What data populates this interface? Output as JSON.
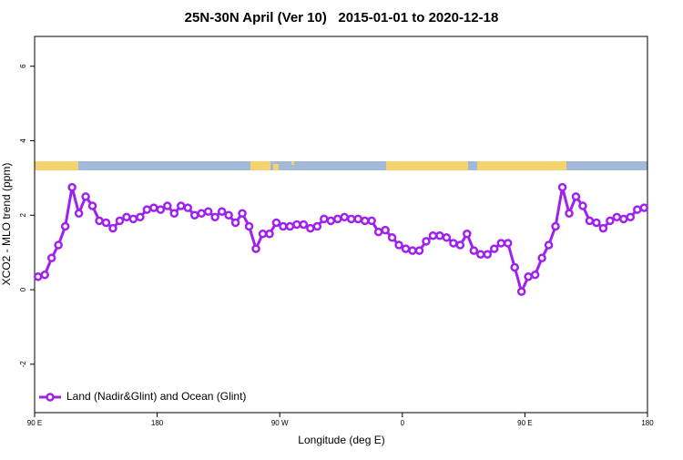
{
  "chart_data": {
    "type": "line",
    "title": "25N-30N April (Ver 10)   2015-01-01 to 2020-12-18",
    "x_label": "Longitude (deg E)",
    "y_label": "XCO2 - MLO trend (ppm)",
    "x": [
      92.5,
      97.5,
      102.5,
      107.5,
      112.5,
      117.5,
      122.5,
      127.5,
      132.5,
      137.5,
      142.5,
      147.5,
      152.5,
      157.5,
      162.5,
      167.5,
      172.5,
      177.5,
      182.5,
      187.5,
      192.5,
      197.5,
      202.5,
      207.5,
      212.5,
      217.5,
      222.5,
      227.5,
      232.5,
      237.5,
      242.5,
      247.5,
      252.5,
      257.5,
      262.5,
      267.5,
      272.5,
      277.5,
      282.5,
      287.5,
      292.5,
      297.5,
      302.5,
      307.5,
      312.5,
      317.5,
      322.5,
      327.5,
      332.5,
      337.5,
      342.5,
      347.5,
      352.5,
      357.5,
      362.5,
      367.5,
      372.5,
      377.5,
      382.5,
      387.5,
      392.5,
      397.5,
      402.5,
      407.5,
      412.5,
      417.5,
      422.5,
      427.5,
      432.5,
      437.5,
      442.5,
      447.5,
      452.5,
      457.5,
      462.5,
      467.5,
      472.5,
      477.5,
      482.5,
      487.5,
      492.5,
      497.5,
      502.5,
      507.5,
      512.5,
      517.5,
      522.5,
      527.5,
      532.5,
      537.5
    ],
    "series": [
      {
        "name": "Land (Nadir&Glint) and Ocean (Glint)",
        "color": "#a020f0",
        "values": [
          0.35,
          0.4,
          0.85,
          1.2,
          1.7,
          2.75,
          2.05,
          2.5,
          2.25,
          1.85,
          1.8,
          1.65,
          1.85,
          1.95,
          1.9,
          1.95,
          2.15,
          2.2,
          2.15,
          2.25,
          2.05,
          2.25,
          2.2,
          2.0,
          2.05,
          2.1,
          1.95,
          2.1,
          2.0,
          1.8,
          2.05,
          1.7,
          1.1,
          1.5,
          1.5,
          1.8,
          1.7,
          1.7,
          1.75,
          1.75,
          1.65,
          1.7,
          1.9,
          1.85,
          1.9,
          1.95,
          1.9,
          1.9,
          1.85,
          1.85,
          1.55,
          1.6,
          1.4,
          1.2,
          1.1,
          1.05,
          1.05,
          1.3,
          1.45,
          1.45,
          1.4,
          1.25,
          1.2,
          1.5,
          1.05,
          0.95,
          0.95,
          1.1,
          1.25,
          1.25,
          0.6,
          -0.05,
          0.35,
          0.4,
          0.85,
          1.2,
          1.7,
          2.75,
          2.05,
          2.5,
          2.25,
          1.85,
          1.8,
          1.65,
          1.85,
          1.95,
          1.9,
          1.95,
          2.15,
          2.2
        ]
      }
    ],
    "xlim": [
      90,
      540
    ],
    "ylim": [
      -3.3,
      6.8
    ],
    "xticks": [
      {
        "value": 90,
        "label": "90 E"
      },
      180,
      {
        "value": 270,
        "label": "90 W"
      },
      {
        "value": 360,
        "label": "0"
      },
      {
        "value": 450,
        "label": "90 E"
      },
      {
        "value": 540,
        "label": "180"
      }
    ],
    "yticks": [
      -2,
      0,
      2,
      4,
      6
    ],
    "legend": "bottom-left"
  }
}
